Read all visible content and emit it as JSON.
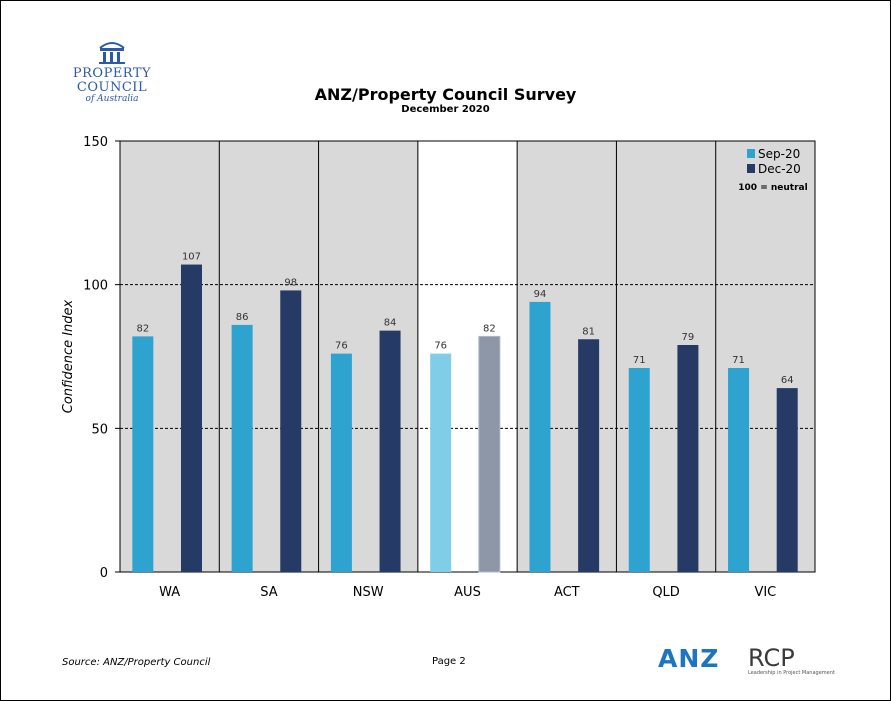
{
  "branding": {
    "pc_line1": "PROPERTY",
    "pc_line2": "COUNCIL",
    "pc_line3": "of Australia",
    "anz": "ANZ",
    "rcp": "RCP",
    "rcp_tagline": "Leadership in Project Management"
  },
  "footer": {
    "source": "Source: ANZ/Property Council",
    "page": "Page 2"
  },
  "chart_data": {
    "type": "bar",
    "title": "ANZ/Property Council Survey",
    "subtitle": "December 2020",
    "ylabel": "Confidence Index",
    "xlabel": "",
    "ylim": [
      0,
      150
    ],
    "yticks": [
      0,
      50,
      100,
      150
    ],
    "grid": "dashed horizontal at 50 and 100",
    "categories": [
      "WA",
      "SA",
      "NSW",
      "AUS",
      "ACT",
      "QLD",
      "VIC"
    ],
    "highlight_category": "AUS",
    "series": [
      {
        "name": "Sep-20",
        "color": "#2ea3d0",
        "values": [
          82,
          86,
          76,
          76,
          94,
          71,
          71
        ]
      },
      {
        "name": "Dec-20",
        "color": "#253a64",
        "values": [
          107,
          98,
          84,
          82,
          81,
          79,
          64
        ]
      }
    ],
    "legend_position": "top-right",
    "legend_note": "100 = neutral",
    "plot_background": "#d9d9d9",
    "highlight_background": "#ffffff"
  }
}
